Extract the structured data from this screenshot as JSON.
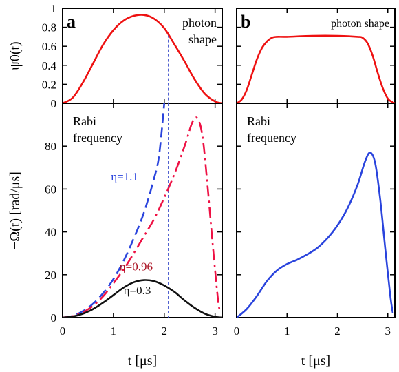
{
  "chart_data": [
    {
      "panel": "a-top",
      "type": "line",
      "panel_label": "a",
      "annotation": "photon\nshape",
      "ylabel": "ψ0(t)",
      "xlim": [
        0,
        3.14
      ],
      "ylim": [
        0,
        1
      ],
      "yticks": [
        "0",
        "0.2",
        "0.4",
        "0.6",
        "0.8",
        "1"
      ],
      "series": [
        {
          "color": "#ee1111",
          "dash": "solid",
          "x": [
            0,
            0.2,
            0.4,
            0.6,
            0.8,
            1.0,
            1.2,
            1.4,
            1.6,
            1.8,
            2.0,
            2.2,
            2.4,
            2.6,
            2.8,
            3.0,
            3.14
          ],
          "y": [
            0,
            0.06,
            0.22,
            0.42,
            0.62,
            0.77,
            0.87,
            0.92,
            0.93,
            0.89,
            0.79,
            0.62,
            0.44,
            0.25,
            0.1,
            0.02,
            0
          ]
        }
      ],
      "marker_x": 2.08
    },
    {
      "panel": "a-bottom",
      "type": "line",
      "annotation": "Rabi\nfrequency",
      "ylabel": "−Ω(t) [rad/μs]",
      "xlabel": "t [μs]",
      "xlim": [
        0,
        3.14
      ],
      "ylim": [
        0,
        100
      ],
      "xticks": [
        "0",
        "1",
        "2",
        "3"
      ],
      "yticks": [
        "0",
        "20",
        "40",
        "60",
        "80"
      ],
      "series": [
        {
          "name": "η=1.1",
          "color": "#2a44dd",
          "dash": "dashed",
          "x": [
            0,
            0.2,
            0.4,
            0.6,
            0.8,
            1.0,
            1.2,
            1.4,
            1.6,
            1.8,
            1.9,
            2.0
          ],
          "y": [
            0,
            0.8,
            3,
            6.5,
            11.5,
            18,
            26.5,
            37,
            49,
            65,
            76,
            100
          ]
        },
        {
          "name": "η=0.96",
          "color": "#ee1144",
          "dash": "dashdot",
          "x": [
            0,
            0.2,
            0.4,
            0.6,
            0.8,
            1.0,
            1.2,
            1.4,
            1.6,
            1.8,
            2.0,
            2.2,
            2.4,
            2.55,
            2.65,
            2.75,
            2.85,
            2.95,
            3.05,
            3.1
          ],
          "y": [
            0,
            0.7,
            2.5,
            5.5,
            10,
            16,
            22.5,
            30,
            38,
            46,
            56,
            67,
            80,
            91,
            93,
            85,
            62,
            35,
            10,
            2
          ]
        },
        {
          "name": "η=0.3",
          "color": "#111111",
          "dash": "solid",
          "x": [
            0,
            0.2,
            0.4,
            0.6,
            0.8,
            1.0,
            1.2,
            1.4,
            1.6,
            1.8,
            2.0,
            2.2,
            2.4,
            2.6,
            2.8,
            3.0,
            3.14
          ],
          "y": [
            0,
            0.5,
            1.8,
            4,
            7,
            10.5,
            14,
            16.5,
            17.5,
            17,
            15,
            12,
            8,
            4.5,
            1.8,
            0.4,
            0
          ]
        }
      ],
      "labels": [
        {
          "text": "η=1.1",
          "color": "#2a44dd",
          "x": 0.95,
          "y": 64
        },
        {
          "text": "η=0.96",
          "color": "#aa1122",
          "x": 1.12,
          "y": 22
        },
        {
          "text": "η=0.3",
          "color": "#111111",
          "x": 1.2,
          "y": 11
        }
      ],
      "marker_x": 2.08
    },
    {
      "panel": "b-top",
      "type": "line",
      "panel_label": "b",
      "annotation": "photon shape",
      "xlim": [
        0,
        3.14
      ],
      "ylim": [
        0,
        1
      ],
      "series": [
        {
          "color": "#ee1111",
          "dash": "solid",
          "x": [
            0,
            0.1,
            0.2,
            0.3,
            0.4,
            0.5,
            0.6,
            0.7,
            0.8,
            1.0,
            1.5,
            2.0,
            2.4,
            2.5,
            2.6,
            2.7,
            2.8,
            2.9,
            3.0,
            3.1,
            3.14
          ],
          "y": [
            0,
            0.04,
            0.14,
            0.3,
            0.46,
            0.58,
            0.65,
            0.69,
            0.7,
            0.7,
            0.71,
            0.71,
            0.7,
            0.69,
            0.63,
            0.5,
            0.32,
            0.16,
            0.05,
            0.01,
            0
          ]
        }
      ]
    },
    {
      "panel": "b-bottom",
      "type": "line",
      "annotation": "Rabi\nfrequency",
      "xlabel": "t [μs]",
      "xlim": [
        0,
        3.14
      ],
      "ylim": [
        0,
        100
      ],
      "xticks": [
        "0",
        "1",
        "2",
        "3"
      ],
      "series": [
        {
          "color": "#2a44dd",
          "dash": "solid",
          "x": [
            0,
            0.2,
            0.4,
            0.6,
            0.8,
            1.0,
            1.2,
            1.4,
            1.6,
            1.8,
            2.0,
            2.2,
            2.4,
            2.55,
            2.65,
            2.75,
            2.85,
            2.95,
            3.05,
            3.1
          ],
          "y": [
            0,
            4,
            10,
            17,
            22,
            25,
            27,
            29.5,
            32.5,
            37,
            43,
            51,
            62,
            73,
            77,
            72,
            55,
            32,
            10,
            2
          ]
        }
      ]
    }
  ]
}
